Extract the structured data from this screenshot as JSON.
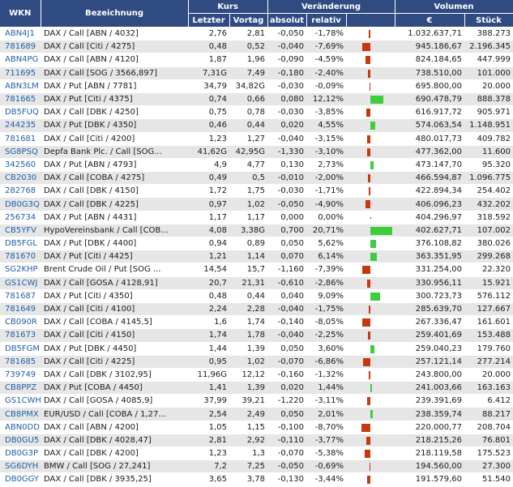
{
  "header": {
    "wkn": "WKN",
    "bezeichnung": "Bezeichnung",
    "kurs": "Kurs",
    "veraenderung": "Veränderung",
    "volumen": "Volumen",
    "letzter": "Letzter",
    "vortag": "Vortag",
    "absolut": "absolut",
    "relativ": "relativ",
    "euro": "€",
    "stueck": "Stück"
  },
  "colors": {
    "header_bg": "#2f4b82",
    "negative": "#c8380e",
    "positive": "#3fcc3f",
    "wkn_link": "#1f5fa8"
  },
  "rows": [
    {
      "wkn": "ABN4J1",
      "name": "DAX / Call [ABN / 4032]",
      "last": "2,76",
      "prev": "2,81",
      "abs": "-0,050",
      "rel": "-1,78%",
      "pct": -1.78,
      "eur": "1.032.637,71",
      "qty": "388.273"
    },
    {
      "wkn": "781689",
      "name": "DAX / Call [Citi / 4275]",
      "last": "0,48",
      "prev": "0,52",
      "abs": "-0,040",
      "rel": "-7,69%",
      "pct": -7.69,
      "eur": "945.186,67",
      "qty": "2.196.345"
    },
    {
      "wkn": "ABN4PG",
      "name": "DAX / Call [ABN / 4120]",
      "last": "1,87",
      "prev": "1,96",
      "abs": "-0,090",
      "rel": "-4,59%",
      "pct": -4.59,
      "eur": "824.184,65",
      "qty": "447.999"
    },
    {
      "wkn": "711695",
      "name": "DAX / Call [SOG / 3566,897]",
      "last": "7,31G",
      "prev": "7,49",
      "abs": "-0,180",
      "rel": "-2,40%",
      "pct": -2.4,
      "eur": "738.510,00",
      "qty": "101.000"
    },
    {
      "wkn": "ABN3LM",
      "name": "DAX / Put [ABN / 7781]",
      "last": "34,79",
      "prev": "34,82G",
      "abs": "-0,030",
      "rel": "-0,09%",
      "pct": -0.09,
      "eur": "695.800,00",
      "qty": "20.000"
    },
    {
      "wkn": "781665",
      "name": "DAX / Put [Citi / 4375]",
      "last": "0,74",
      "prev": "0,66",
      "abs": "0,080",
      "rel": "12,12%",
      "pct": 12.12,
      "eur": "690.478,79",
      "qty": "888.378"
    },
    {
      "wkn": "DB5FUQ",
      "name": "DAX / Call [DBK / 4250]",
      "last": "0,75",
      "prev": "0,78",
      "abs": "-0,030",
      "rel": "-3,85%",
      "pct": -3.85,
      "eur": "616.917,72",
      "qty": "905.971"
    },
    {
      "wkn": "244235",
      "name": "DAX / Put [DBK / 4350]",
      "last": "0,46",
      "prev": "0,44",
      "abs": "0,020",
      "rel": "4,55%",
      "pct": 4.55,
      "eur": "574.063,54",
      "qty": "1.148.951"
    },
    {
      "wkn": "781681",
      "name": "DAX / Call [Citi / 4200]",
      "last": "1,23",
      "prev": "1,27",
      "abs": "-0,040",
      "rel": "-3,15%",
      "pct": -3.15,
      "eur": "480.017,73",
      "qty": "409.782"
    },
    {
      "wkn": "SG8PSQ",
      "name": "Depfa Bank Plc. / Call [SOG...",
      "last": "41,62G",
      "prev": "42,95G",
      "abs": "-1,330",
      "rel": "-3,10%",
      "pct": -3.1,
      "eur": "477.362,00",
      "qty": "11.600"
    },
    {
      "wkn": "342560",
      "name": "DAX / Put [ABN / 4793]",
      "last": "4,9",
      "prev": "4,77",
      "abs": "0,130",
      "rel": "2,73%",
      "pct": 2.73,
      "eur": "473.147,70",
      "qty": "95.320"
    },
    {
      "wkn": "CB2030",
      "name": "DAX / Call [COBA / 4275]",
      "last": "0,49",
      "prev": "0,5",
      "abs": "-0,010",
      "rel": "-2,00%",
      "pct": -2.0,
      "eur": "466.594,87",
      "qty": "1.096.775"
    },
    {
      "wkn": "282768",
      "name": "DAX / Call [DBK / 4150]",
      "last": "1,72",
      "prev": "1,75",
      "abs": "-0,030",
      "rel": "-1,71%",
      "pct": -1.71,
      "eur": "422.894,34",
      "qty": "254.402"
    },
    {
      "wkn": "DB0G3Q",
      "name": "DAX / Call [DBK / 4225]",
      "last": "0,97",
      "prev": "1,02",
      "abs": "-0,050",
      "rel": "-4,90%",
      "pct": -4.9,
      "eur": "406.096,23",
      "qty": "432.202"
    },
    {
      "wkn": "256734",
      "name": "DAX / Put [ABN / 4431]",
      "last": "1,17",
      "prev": "1,17",
      "abs": "0,000",
      "rel": "0,00%",
      "pct": 0,
      "eur": "404.296,97",
      "qty": "318.592"
    },
    {
      "wkn": "CB5YFV",
      "name": "HypoVereinsbank / Call [COB...",
      "last": "4,08",
      "prev": "3,38G",
      "abs": "0,700",
      "rel": "20,71%",
      "pct": 20.71,
      "eur": "402.627,71",
      "qty": "107.002"
    },
    {
      "wkn": "DB5FGL",
      "name": "DAX / Put [DBK / 4400]",
      "last": "0,94",
      "prev": "0,89",
      "abs": "0,050",
      "rel": "5,62%",
      "pct": 5.62,
      "eur": "376.108,82",
      "qty": "380.026"
    },
    {
      "wkn": "781670",
      "name": "DAX / Put [Citi / 4425]",
      "last": "1,21",
      "prev": "1,14",
      "abs": "0,070",
      "rel": "6,14%",
      "pct": 6.14,
      "eur": "363.351,95",
      "qty": "299.268"
    },
    {
      "wkn": "SG2KHP",
      "name": "Brent Crude Oil / Put [SOG ...",
      "last": "14,54",
      "prev": "15,7",
      "abs": "-1,160",
      "rel": "-7,39%",
      "pct": -7.39,
      "eur": "331.254,00",
      "qty": "22.320"
    },
    {
      "wkn": "GS1CWJ",
      "name": "DAX / Call [GOSA / 4128,91]",
      "last": "20,7",
      "prev": "21,31",
      "abs": "-0,610",
      "rel": "-2,86%",
      "pct": -2.86,
      "eur": "330.956,11",
      "qty": "15.921"
    },
    {
      "wkn": "781687",
      "name": "DAX / Put [Citi / 4350]",
      "last": "0,48",
      "prev": "0,44",
      "abs": "0,040",
      "rel": "9,09%",
      "pct": 9.09,
      "eur": "300.723,73",
      "qty": "576.112"
    },
    {
      "wkn": "781649",
      "name": "DAX / Call [Citi / 4100]",
      "last": "2,24",
      "prev": "2,28",
      "abs": "-0,040",
      "rel": "-1,75%",
      "pct": -1.75,
      "eur": "285.639,70",
      "qty": "127.667"
    },
    {
      "wkn": "CB090R",
      "name": "DAX / Call [COBA / 4145,5]",
      "last": "1,6",
      "prev": "1,74",
      "abs": "-0,140",
      "rel": "-8,05%",
      "pct": -8.05,
      "eur": "267.336,47",
      "qty": "161.601"
    },
    {
      "wkn": "781673",
      "name": "DAX / Call [Citi / 4150]",
      "last": "1,74",
      "prev": "1,78",
      "abs": "-0,040",
      "rel": "-2,25%",
      "pct": -2.25,
      "eur": "259.401,69",
      "qty": "153.488"
    },
    {
      "wkn": "DB5FGM",
      "name": "DAX / Put [DBK / 4450]",
      "last": "1,44",
      "prev": "1,39",
      "abs": "0,050",
      "rel": "3,60%",
      "pct": 3.6,
      "eur": "259.040,23",
      "qty": "179.760"
    },
    {
      "wkn": "781685",
      "name": "DAX / Call [Citi / 4225]",
      "last": "0,95",
      "prev": "1,02",
      "abs": "-0,070",
      "rel": "-6,86%",
      "pct": -6.86,
      "eur": "257.121,14",
      "qty": "277.214"
    },
    {
      "wkn": "739749",
      "name": "DAX / Call [DBK / 3102,95]",
      "last": "11,96G",
      "prev": "12,12",
      "abs": "-0,160",
      "rel": "-1,32%",
      "pct": -1.32,
      "eur": "243.800,00",
      "qty": "20.000"
    },
    {
      "wkn": "CB8PPZ",
      "name": "DAX / Put [COBA / 4450]",
      "last": "1,41",
      "prev": "1,39",
      "abs": "0,020",
      "rel": "1,44%",
      "pct": 1.44,
      "eur": "241.003,66",
      "qty": "163.163"
    },
    {
      "wkn": "GS1CWH",
      "name": "DAX / Call [GOSA / 4085,9]",
      "last": "37,99",
      "prev": "39,21",
      "abs": "-1,220",
      "rel": "-3,11%",
      "pct": -3.11,
      "eur": "239.391,69",
      "qty": "6.412"
    },
    {
      "wkn": "CB8PMX",
      "name": "EUR/USD / Call [COBA / 1,27...",
      "last": "2,54",
      "prev": "2,49",
      "abs": "0,050",
      "rel": "2,01%",
      "pct": 2.01,
      "eur": "238.359,74",
      "qty": "88.217"
    },
    {
      "wkn": "ABN0DD",
      "name": "DAX / Call [ABN / 4200]",
      "last": "1,05",
      "prev": "1,15",
      "abs": "-0,100",
      "rel": "-8,70%",
      "pct": -8.7,
      "eur": "220.000,77",
      "qty": "208.704"
    },
    {
      "wkn": "DB0GU5",
      "name": "DAX / Call [DBK / 4028,47]",
      "last": "2,81",
      "prev": "2,92",
      "abs": "-0,110",
      "rel": "-3,77%",
      "pct": -3.77,
      "eur": "218.215,26",
      "qty": "76.801"
    },
    {
      "wkn": "DB0G3P",
      "name": "DAX / Call [DBK / 4200]",
      "last": "1,23",
      "prev": "1,3",
      "abs": "-0,070",
      "rel": "-5,38%",
      "pct": -5.38,
      "eur": "218.119,58",
      "qty": "175.523"
    },
    {
      "wkn": "SG6DYH",
      "name": "BMW / Call [SOG / 27,241]",
      "last": "7,2",
      "prev": "7,25",
      "abs": "-0,050",
      "rel": "-0,69%",
      "pct": -0.69,
      "eur": "194.560,00",
      "qty": "27.300"
    },
    {
      "wkn": "DB0GGY",
      "name": "DAX / Call [DBK / 3935,25]",
      "last": "3,65",
      "prev": "3,78",
      "abs": "-0,130",
      "rel": "-3,44%",
      "pct": -3.44,
      "eur": "191.579,60",
      "qty": "51.540"
    }
  ]
}
